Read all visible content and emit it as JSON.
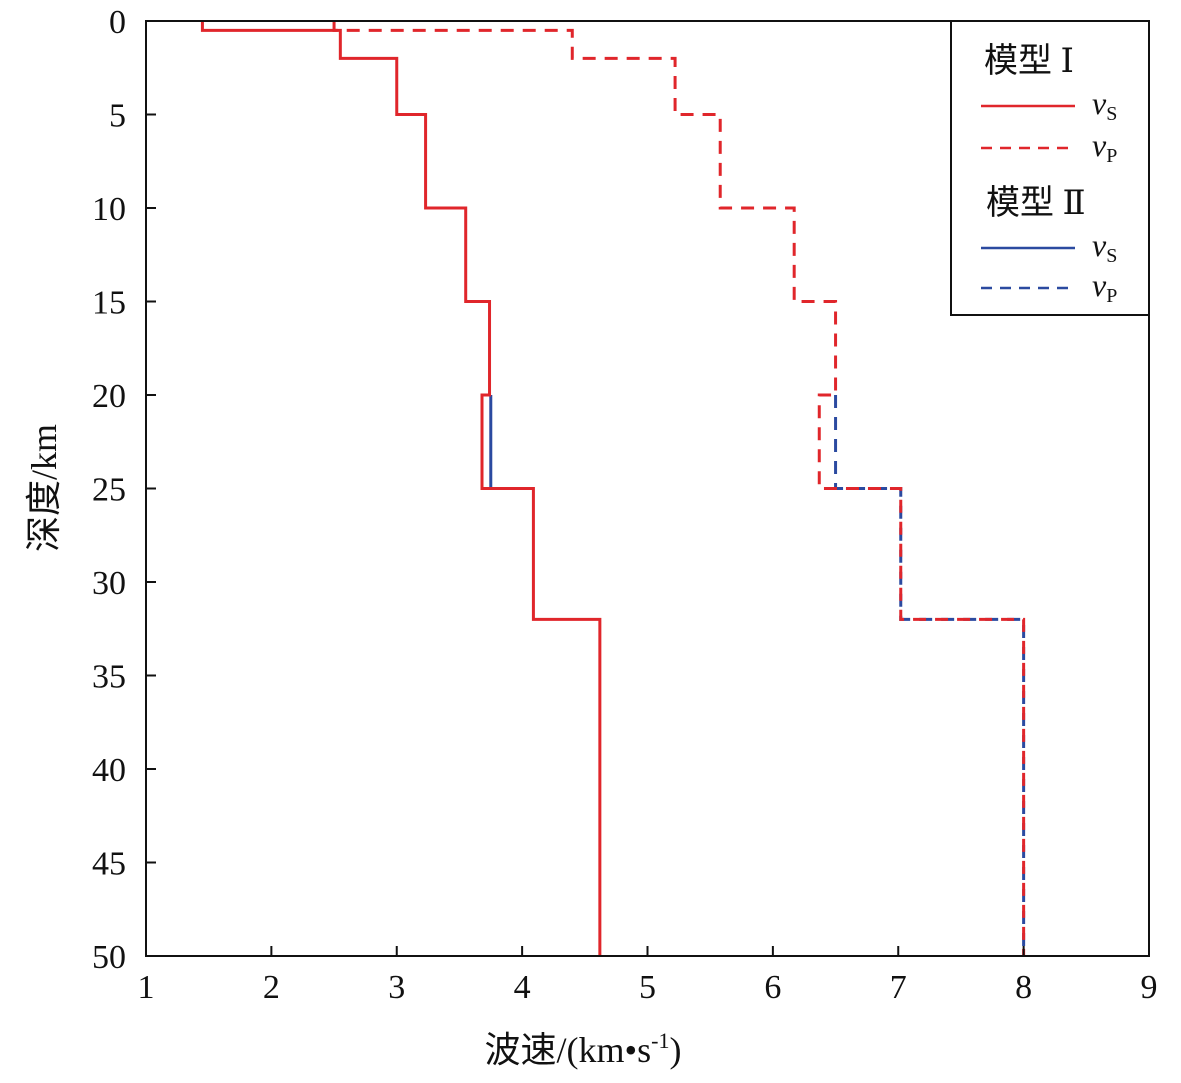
{
  "chart_data": {
    "type": "line",
    "xlabel": "波速/(km•s",
    "xlabel_sup": "-1",
    "xlabel_close": ")",
    "ylabel": "深度/km",
    "xlim": [
      1,
      9
    ],
    "ylim": [
      0,
      50
    ],
    "y_inverted": true,
    "xticks": [
      "1",
      "2",
      "3",
      "4",
      "5",
      "6",
      "7",
      "8",
      "9"
    ],
    "yticks": [
      "0",
      "5",
      "10",
      "15",
      "20",
      "25",
      "30",
      "35",
      "40",
      "45",
      "50"
    ],
    "grid": false,
    "legend_position": "top-right",
    "legend": {
      "groups": [
        {
          "title": "模型 Ⅰ",
          "entries": [
            {
              "label": "v",
              "sub": "S",
              "style": "solid",
              "color": "#e0262b"
            },
            {
              "label": "v",
              "sub": "P",
              "style": "dashed",
              "color": "#e0262b"
            }
          ]
        },
        {
          "title": "模型 Ⅱ",
          "entries": [
            {
              "label": "v",
              "sub": "S",
              "style": "solid",
              "color": "#2b4aa0"
            },
            {
              "label": "v",
              "sub": "P",
              "style": "dashed",
              "color": "#2b4aa0"
            }
          ]
        }
      ]
    },
    "series": [
      {
        "name": "模型 Ⅱ vS",
        "color": "#2b4aa0",
        "style": "solid",
        "layers": [
          {
            "top": 20,
            "bottom": 25,
            "v": 3.75
          }
        ]
      },
      {
        "name": "模型 Ⅱ vP",
        "color": "#2b4aa0",
        "style": "dashed",
        "layers": [
          {
            "top": 20,
            "bottom": 25,
            "v": 6.5
          },
          {
            "top": 25,
            "bottom": 32,
            "v": 7.02
          },
          {
            "top": 32,
            "bottom": 50,
            "v": 8.0
          }
        ]
      },
      {
        "name": "模型 Ⅰ vS",
        "color": "#e0262b",
        "style": "solid",
        "layers": [
          {
            "top": 0,
            "bottom": 0.5,
            "v": 1.45
          },
          {
            "top": 0.5,
            "bottom": 2,
            "v": 2.55
          },
          {
            "top": 2,
            "bottom": 5,
            "v": 3.0
          },
          {
            "top": 5,
            "bottom": 10,
            "v": 3.23
          },
          {
            "top": 10,
            "bottom": 15,
            "v": 3.55
          },
          {
            "top": 15,
            "bottom": 20,
            "v": 3.74
          },
          {
            "top": 20,
            "bottom": 25,
            "v": 3.68
          },
          {
            "top": 25,
            "bottom": 32,
            "v": 4.09
          },
          {
            "top": 32,
            "bottom": 50,
            "v": 4.62
          }
        ]
      },
      {
        "name": "模型 Ⅰ vP",
        "color": "#e0262b",
        "style": "dashed",
        "layers": [
          {
            "top": 0,
            "bottom": 0.5,
            "v": 2.5
          },
          {
            "top": 0.5,
            "bottom": 2,
            "v": 4.4
          },
          {
            "top": 2,
            "bottom": 5,
            "v": 5.22
          },
          {
            "top": 5,
            "bottom": 10,
            "v": 5.58
          },
          {
            "top": 10,
            "bottom": 15,
            "v": 6.17
          },
          {
            "top": 15,
            "bottom": 20,
            "v": 6.5
          },
          {
            "top": 20,
            "bottom": 25,
            "v": 6.37
          },
          {
            "top": 25,
            "bottom": 32,
            "v": 7.02
          },
          {
            "top": 32,
            "bottom": 50,
            "v": 8.0
          }
        ]
      }
    ]
  }
}
